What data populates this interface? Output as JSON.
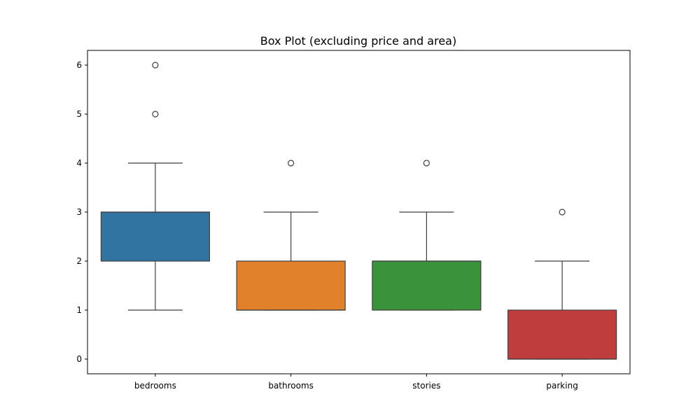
{
  "chart_data": {
    "type": "box",
    "title": "Box Plot (excluding price and area)",
    "xlabel": "",
    "ylabel": "",
    "categories": [
      "bedrooms",
      "bathrooms",
      "stories",
      "parking"
    ],
    "ylim": [
      -0.3,
      6.3
    ],
    "yticks": [
      "0",
      "1",
      "2",
      "3",
      "4",
      "5",
      "6"
    ],
    "grid": false,
    "boxes": [
      {
        "name": "bedrooms",
        "whisker_low": 1,
        "q1": 2,
        "median": 3,
        "q3": 3,
        "whisker_high": 4,
        "outliers": [
          5,
          6
        ],
        "color": "#3274a1"
      },
      {
        "name": "bathrooms",
        "whisker_low": 1,
        "q1": 1,
        "median": 1,
        "q3": 2,
        "whisker_high": 3,
        "outliers": [
          4
        ],
        "color": "#e1812c"
      },
      {
        "name": "stories",
        "whisker_low": 1,
        "q1": 1,
        "median": 2,
        "q3": 2,
        "whisker_high": 3,
        "outliers": [
          4
        ],
        "color": "#3a923a"
      },
      {
        "name": "parking",
        "whisker_low": 0,
        "q1": 0,
        "median": 0,
        "q3": 1,
        "whisker_high": 2,
        "outliers": [
          3
        ],
        "color": "#c03d3e"
      }
    ]
  }
}
